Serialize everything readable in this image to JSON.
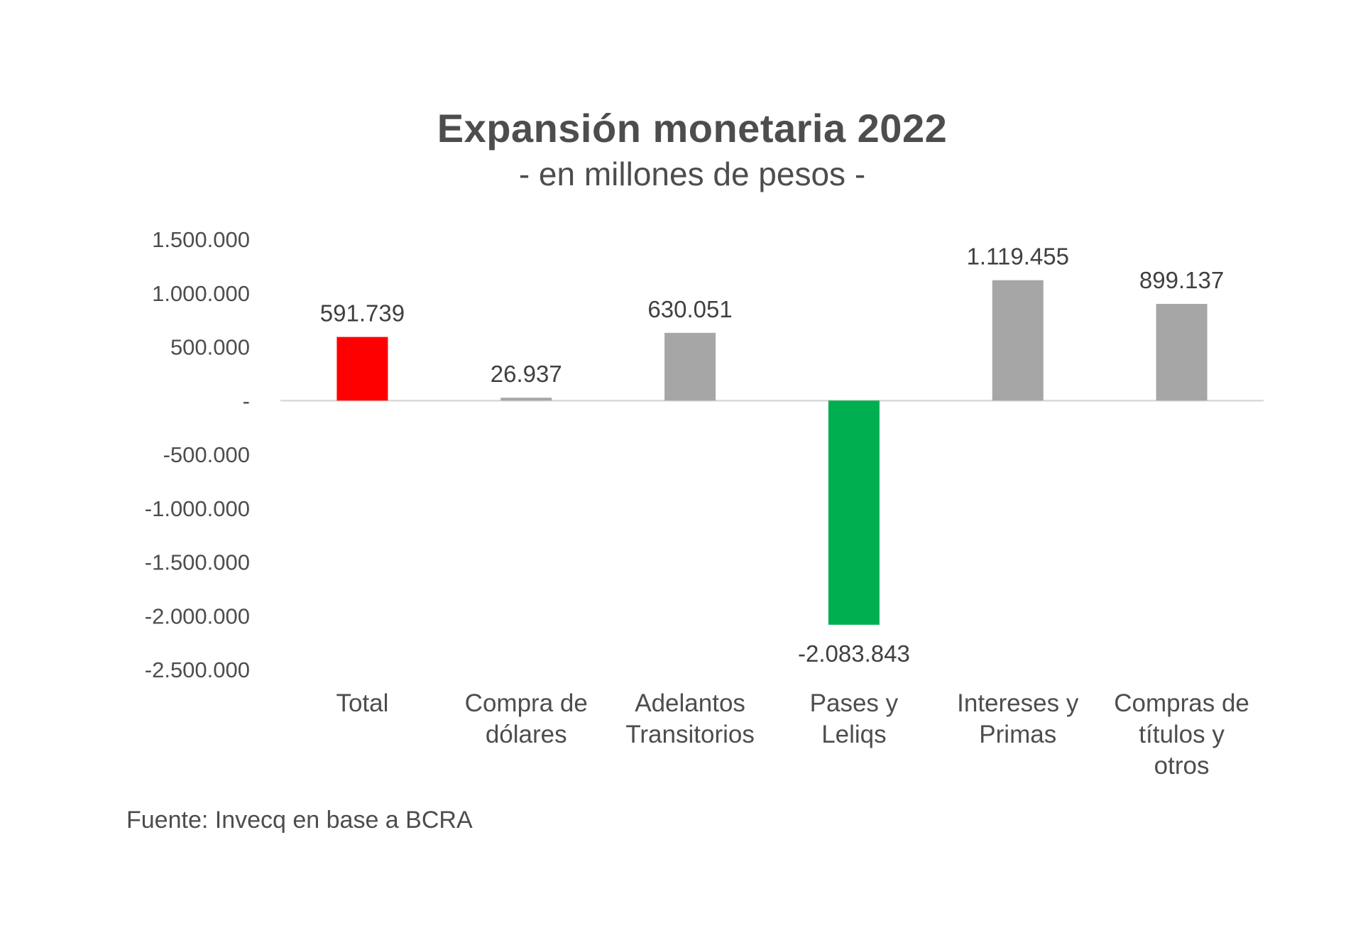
{
  "chart_data": {
    "type": "bar",
    "title": "Expansión monetaria 2022",
    "subtitle": "- en millones de pesos -",
    "categories": [
      [
        "Total"
      ],
      [
        "Compra de",
        "dólares"
      ],
      [
        "Adelantos",
        "Transitorios"
      ],
      [
        "Pases y",
        "Leliqs"
      ],
      [
        "Intereses y",
        "Primas"
      ],
      [
        "Compras de",
        "títulos y",
        "otros"
      ]
    ],
    "values": [
      591739,
      26937,
      630051,
      -2083843,
      1119455,
      899137
    ],
    "data_labels": [
      "591.739",
      "26.937",
      "630.051",
      "-2.083.843",
      "1.119.455",
      "899.137"
    ],
    "colors": [
      "#ff0000",
      "#a6a6a6",
      "#a6a6a6",
      "#00b050",
      "#a6a6a6",
      "#a6a6a6"
    ],
    "ylim": [
      -2500000,
      1500000
    ],
    "yticks": [
      1500000,
      1000000,
      500000,
      0,
      -500000,
      -1000000,
      -1500000,
      -2000000,
      -2500000
    ],
    "ytick_labels": [
      "1.500.000",
      "1.000.000",
      "500.000",
      "-",
      "-500.000",
      "-1.000.000",
      "-1.500.000",
      "-2.000.000",
      "-2.500.000"
    ],
    "grid": false,
    "legend": "none"
  },
  "source": "Fuente: Invecq en base a BCRA"
}
